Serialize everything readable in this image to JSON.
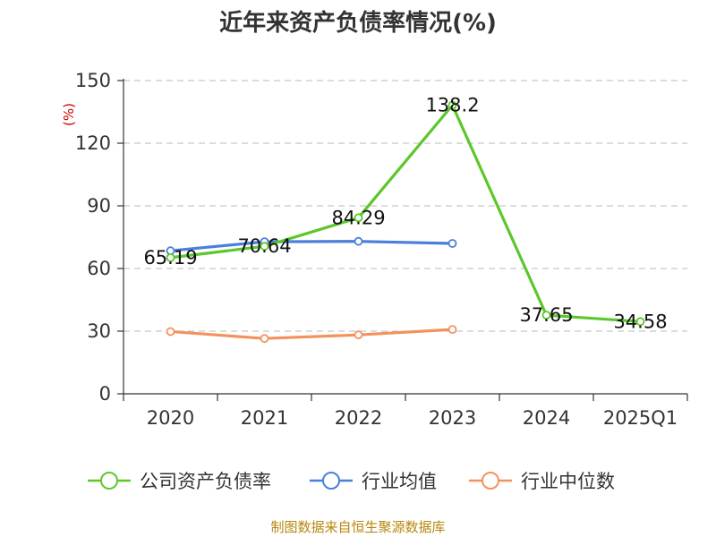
{
  "chart_data": {
    "type": "line",
    "title": "近年来资产负债率情况(%)",
    "ylabel": "(%)",
    "xlabel": "",
    "categories": [
      "2020",
      "2021",
      "2022",
      "2023",
      "2024",
      "2025Q1"
    ],
    "ylim": [
      0,
      150
    ],
    "yticks": [
      0,
      30,
      60,
      90,
      120,
      150
    ],
    "grid": true,
    "legend_position": "bottom",
    "series": [
      {
        "name": "公司资产负债率",
        "color": "#5cc72b",
        "values": [
          65.19,
          70.64,
          84.29,
          138.2,
          37.65,
          34.58
        ],
        "labels": [
          "65.19",
          "70.64",
          "84.29",
          "138.2",
          "37.65",
          "34.58"
        ]
      },
      {
        "name": "行业均值",
        "color": "#4a7fdc",
        "values": [
          68.5,
          72.8,
          73.0,
          72.0,
          null,
          null
        ]
      },
      {
        "name": "行业中位数",
        "color": "#f4925e",
        "values": [
          29.8,
          26.5,
          28.2,
          30.8,
          null,
          null
        ]
      }
    ]
  },
  "source": "制图数据来自恒生聚源数据库"
}
